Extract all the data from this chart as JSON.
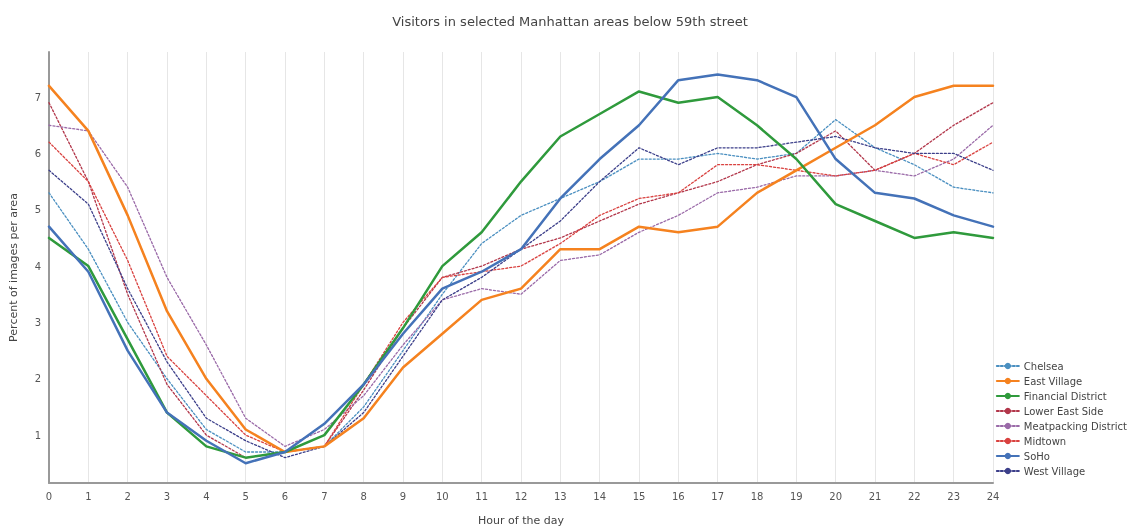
{
  "chart_data": {
    "type": "line",
    "title": "Visitors in selected Manhattan areas below 59th street",
    "xlabel": "Hour of the day",
    "ylabel": "Percent of images per area",
    "x": [
      0,
      1,
      2,
      3,
      4,
      5,
      6,
      7,
      8,
      9,
      10,
      11,
      12,
      13,
      14,
      15,
      16,
      17,
      18,
      19,
      20,
      21,
      22,
      23,
      24
    ],
    "xlim": [
      0,
      24
    ],
    "xticks": [
      0,
      1,
      2,
      3,
      4,
      5,
      6,
      7,
      8,
      9,
      10,
      11,
      12,
      13,
      14,
      15,
      16,
      17,
      18,
      19,
      20,
      21,
      22,
      23,
      24
    ],
    "ylim": [
      0.15,
      7.8
    ],
    "yticks": [
      1,
      2,
      3,
      4,
      5,
      6,
      7
    ],
    "grid": "x",
    "legend": "bottom right",
    "marker": "none",
    "series": [
      {
        "name": "Chelsea",
        "color": "#4a8fc0",
        "line_style": "dotted",
        "values": [
          5.3,
          4.3,
          3.0,
          2.0,
          1.1,
          0.7,
          0.7,
          0.8,
          1.5,
          2.5,
          3.5,
          4.4,
          4.9,
          5.2,
          5.5,
          5.9,
          5.9,
          6.0,
          5.9,
          6.0,
          6.6,
          6.1,
          5.8,
          5.4,
          5.3
        ]
      },
      {
        "name": "East Village",
        "color": "#f5821f",
        "line_style": "solid",
        "values": [
          7.2,
          6.4,
          4.9,
          3.2,
          2.0,
          1.1,
          0.7,
          0.8,
          1.3,
          2.2,
          2.8,
          3.4,
          3.6,
          4.3,
          4.3,
          4.7,
          4.6,
          4.7,
          5.3,
          5.7,
          6.1,
          6.5,
          7.0,
          7.2,
          7.2
        ]
      },
      {
        "name": "Financial District",
        "color": "#2f9a3c",
        "line_style": "solid",
        "values": [
          4.5,
          4.0,
          2.7,
          1.4,
          0.8,
          0.6,
          0.7,
          1.0,
          1.9,
          2.9,
          4.0,
          4.6,
          5.5,
          6.3,
          6.7,
          7.1,
          6.9,
          7.0,
          6.5,
          5.9,
          5.1,
          4.8,
          4.5,
          4.6,
          4.5
        ]
      },
      {
        "name": "Lower East Side",
        "color": "#b2364a",
        "line_style": "dotted",
        "values": [
          6.9,
          5.5,
          3.5,
          1.9,
          1.0,
          0.6,
          0.7,
          0.8,
          1.8,
          2.9,
          3.8,
          4.0,
          4.3,
          4.5,
          4.8,
          5.1,
          5.3,
          5.5,
          5.8,
          6.0,
          6.4,
          5.7,
          6.0,
          6.5,
          6.9
        ]
      },
      {
        "name": "Meatpacking District",
        "color": "#9a6aa8",
        "line_style": "dotted",
        "values": [
          6.5,
          6.4,
          5.4,
          3.8,
          2.6,
          1.3,
          0.8,
          1.1,
          1.7,
          2.6,
          3.4,
          3.6,
          3.5,
          4.1,
          4.2,
          4.6,
          4.9,
          5.3,
          5.4,
          5.6,
          5.6,
          5.7,
          5.6,
          5.9,
          6.5
        ]
      },
      {
        "name": "Midtown",
        "color": "#d9413f",
        "line_style": "dotted",
        "values": [
          6.2,
          5.5,
          4.1,
          2.4,
          1.7,
          1.0,
          0.7,
          0.8,
          1.9,
          3.0,
          3.8,
          3.9,
          4.0,
          4.4,
          4.9,
          5.2,
          5.3,
          5.8,
          5.8,
          5.7,
          5.6,
          5.7,
          6.0,
          5.8,
          6.2
        ]
      },
      {
        "name": "SoHo",
        "color": "#4472b8",
        "line_style": "solid",
        "values": [
          4.7,
          3.9,
          2.5,
          1.4,
          0.9,
          0.5,
          0.7,
          1.2,
          1.9,
          2.8,
          3.6,
          3.9,
          4.3,
          5.2,
          5.9,
          6.5,
          7.3,
          7.4,
          7.3,
          7.0,
          5.9,
          5.3,
          5.2,
          4.9,
          4.7
        ]
      },
      {
        "name": "West Village",
        "color": "#3c3f8a",
        "line_style": "dotted",
        "values": [
          5.7,
          5.1,
          3.6,
          2.3,
          1.3,
          0.9,
          0.6,
          0.8,
          1.4,
          2.4,
          3.4,
          3.8,
          4.3,
          4.8,
          5.5,
          6.1,
          5.8,
          6.1,
          6.1,
          6.2,
          6.3,
          6.1,
          6.0,
          6.0,
          5.7
        ]
      }
    ]
  }
}
